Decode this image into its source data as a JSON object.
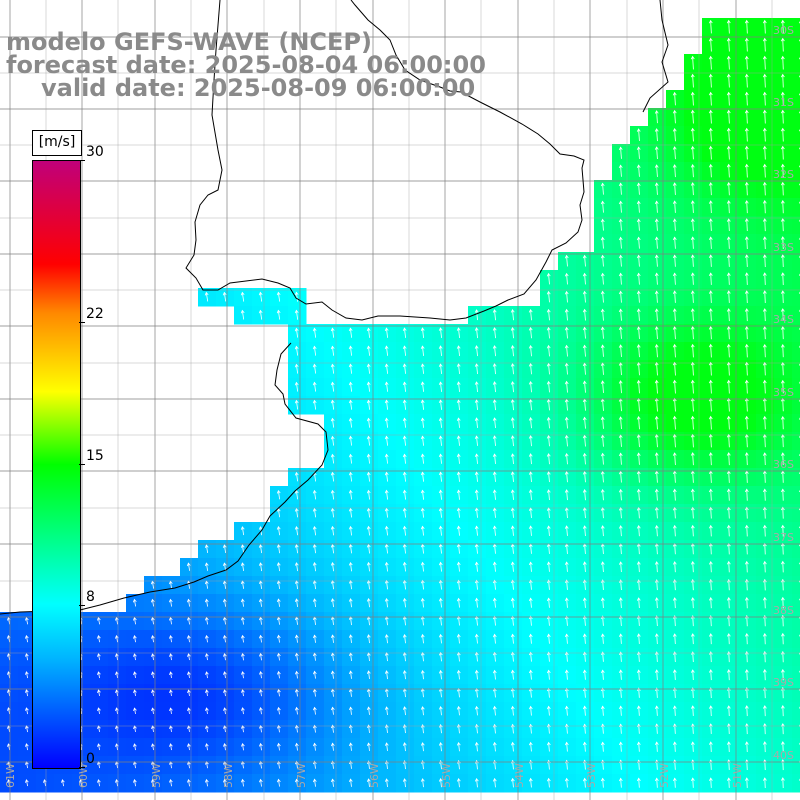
{
  "title": {
    "line1": "modelo GEFS-WAVE (NCEP)",
    "line2": "forecast date: 2025-08-04 06:00:00",
    "line3": "valid date: 2025-08-09 06:00:00"
  },
  "colorbar": {
    "unit": "[m/s]",
    "ticks": [
      "30",
      "22",
      "15",
      "8",
      "0"
    ],
    "tick_values": [
      30,
      22,
      15,
      8,
      0
    ],
    "range": [
      0,
      30
    ],
    "colors": [
      "#0000ff",
      "#00b4ff",
      "#00ffff",
      "#00ff00",
      "#ffff00",
      "#ff8800",
      "#ff0000",
      "#c0007a"
    ]
  },
  "map": {
    "longitude_labels": [
      "61W",
      "60W",
      "59W",
      "58W",
      "57W",
      "56W",
      "55W",
      "54W",
      "53W",
      "52W",
      "51W"
    ],
    "latitude_labels": [
      "30S",
      "31S",
      "32S",
      "33S",
      "34S",
      "35S",
      "36S",
      "37S",
      "38S",
      "39S",
      "40S"
    ],
    "lon_range": [
      -62,
      -51
    ],
    "lat_range": [
      -41,
      -30
    ],
    "colors": {
      "land": "#ffffff",
      "grid": "#808080",
      "coast": "#000000",
      "arrows": "#ffffff"
    }
  }
}
